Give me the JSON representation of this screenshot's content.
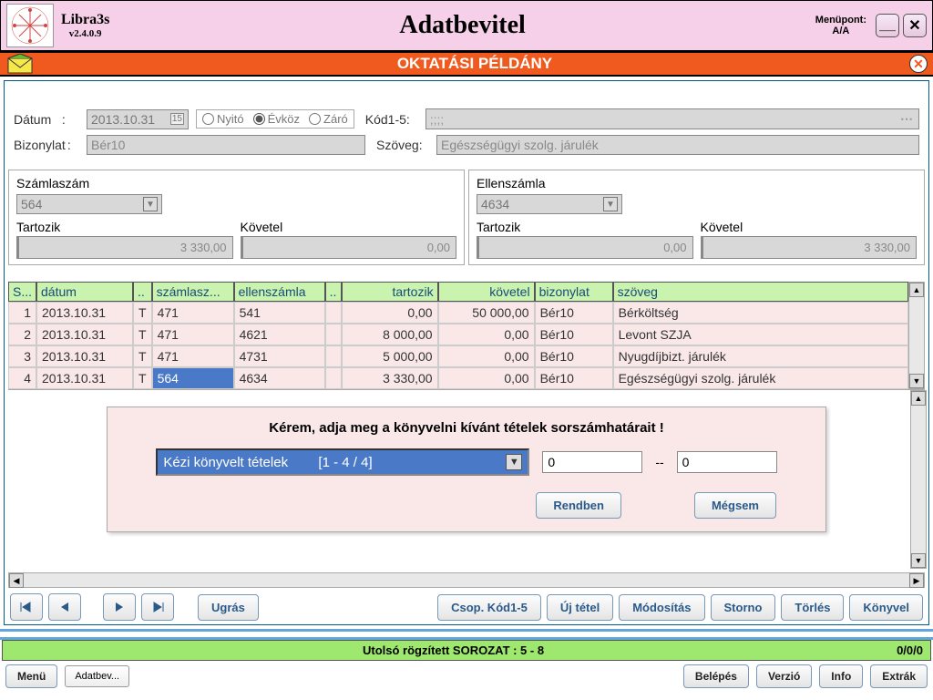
{
  "app": {
    "name": "Libra3s",
    "version": "v2.4.0.9",
    "title": "Adatbevitel",
    "menuPointLabel": "Menüpont:",
    "menuPointValue": "A/A"
  },
  "banner": {
    "title": "OKTATÁSI PÉLDÁNY"
  },
  "form": {
    "dateLabel": "Dátum",
    "dateValue": "2013.10.31",
    "radio1": "Nyitó",
    "radio2": "Évköz",
    "radio3": "Záró",
    "codesLabel": "Kód1-5",
    "codesValue": ";;;;",
    "docLabel": "Bizonylat",
    "docValue": "Bér10",
    "textLabel": "Szöveg",
    "textValue": "Egészségügyi szolg. járulék"
  },
  "left": {
    "title": "Számlaszám",
    "value": "564",
    "debitLabel": "Tartozik",
    "debitValue": "3 330,00",
    "creditLabel": "Követel",
    "creditValue": "0,00"
  },
  "right": {
    "title": "Ellenszámla",
    "value": "4634",
    "debitLabel": "Tartozik",
    "debitValue": "0,00",
    "creditLabel": "Követel",
    "creditValue": "3 330,00"
  },
  "table": {
    "cols": [
      "S...",
      "dátum",
      "..",
      "számlasz...",
      "ellenszámla",
      "..",
      "tartozik",
      "követel",
      "bizonylat",
      "szöveg"
    ],
    "rows": [
      {
        "n": "1",
        "d": "2013.10.31",
        "t": "T",
        "a": "471",
        "e": "541",
        "x": "",
        "deb": "0,00",
        "cred": "50 000,00",
        "biz": "Bér10",
        "sz": "Bérköltség"
      },
      {
        "n": "2",
        "d": "2013.10.31",
        "t": "T",
        "a": "471",
        "e": "4621",
        "x": "",
        "deb": "8 000,00",
        "cred": "0,00",
        "biz": "Bér10",
        "sz": "Levont SZJA"
      },
      {
        "n": "3",
        "d": "2013.10.31",
        "t": "T",
        "a": "471",
        "e": "4731",
        "x": "",
        "deb": "5 000,00",
        "cred": "0,00",
        "biz": "Bér10",
        "sz": "Nyugdíjbizt. járulék"
      },
      {
        "n": "4",
        "d": "2013.10.31",
        "t": "T",
        "a": "564",
        "e": "4634",
        "x": "",
        "deb": "3 330,00",
        "cred": "0,00",
        "biz": "Bér10",
        "sz": "Egészségügyi szolg. járulék"
      }
    ]
  },
  "dialog": {
    "title": "Kérem, adja meg a könyvelni kívánt tételek sorszámhatárait !",
    "comboText": "Kézi könyvelt tételek",
    "comboRange": "[1 - 4 / 4]",
    "from": "0",
    "sep": "--",
    "to": "0",
    "ok": "Rendben",
    "cancel": "Mégsem"
  },
  "nav": {
    "jump": "Ugrás",
    "group": "Csop. Kód1-5",
    "new": "Új tétel",
    "modify": "Módosítás",
    "storno": "Storno",
    "delete": "Törlés",
    "book": "Könyvel"
  },
  "status": {
    "text": "Utolsó rögzített SOROZAT : 5 - 8",
    "counter": "0/0/0"
  },
  "bottom": {
    "menu": "Menü",
    "tab": "Adatbev...",
    "login": "Belépés",
    "version": "Verzió",
    "info": "Info",
    "extras": "Extrák"
  },
  "colors": {
    "titlebar": "#f5d0e8",
    "orange": "#f05a1e",
    "green": "#9fe870",
    "tableHeader": "#c9f3ae",
    "tableRow": "#fae8e9",
    "selected": "#4a7ac7"
  }
}
